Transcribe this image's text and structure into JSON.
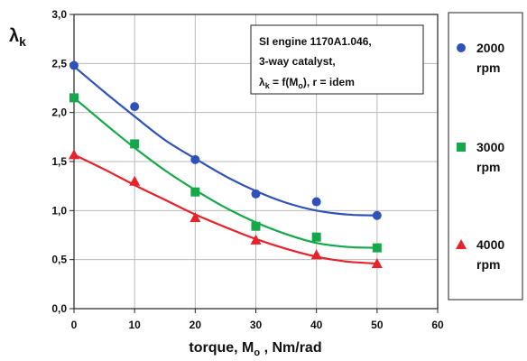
{
  "chart_data": {
    "type": "scatter",
    "ylabel_symbol": "λ",
    "ylabel_sub": "k",
    "xlabel_pre": "torque, M",
    "xlabel_sub": "o",
    "xlabel_post": " ,   Nm/rad",
    "xlim": [
      0,
      60
    ],
    "ylim": [
      0,
      3
    ],
    "xticks": [
      0,
      10,
      20,
      30,
      40,
      50,
      60
    ],
    "yticks": [
      "0,0",
      "0,5",
      "1,0",
      "1,5",
      "2,0",
      "2,5",
      "3,0"
    ],
    "grid": true,
    "annotation": {
      "line1": "SI engine 1170A1.046,",
      "line2": "3-way catalyst,",
      "line3_lambda": "λ",
      "line3_lambda_sub": "k",
      "line3_mid": " = f(M",
      "line3_m_sub": "o",
      "line3_end": "), r = idem"
    },
    "legend_position": "right",
    "series": [
      {
        "name_line1": "2000",
        "name_line2": "rpm",
        "marker": "circle",
        "color": "#2f52b8",
        "x": [
          0,
          10,
          20,
          30,
          40,
          50
        ],
        "y": [
          2.48,
          2.06,
          1.52,
          1.17,
          1.09,
          0.95
        ],
        "fit_x": [
          0,
          5,
          10,
          15,
          20,
          25,
          30,
          35,
          40,
          45,
          50
        ],
        "fit_y": [
          2.47,
          2.21,
          1.96,
          1.72,
          1.53,
          1.35,
          1.2,
          1.08,
          1.0,
          0.96,
          0.95
        ]
      },
      {
        "name_line1": "3000",
        "name_line2": "rpm",
        "marker": "square",
        "color": "#15a84a",
        "x": [
          0,
          10,
          20,
          30,
          40,
          50
        ],
        "y": [
          2.15,
          1.68,
          1.19,
          0.84,
          0.73,
          0.62
        ],
        "fit_x": [
          0,
          5,
          10,
          15,
          20,
          25,
          30,
          35,
          40,
          45,
          50
        ],
        "fit_y": [
          2.15,
          1.89,
          1.64,
          1.41,
          1.21,
          1.03,
          0.88,
          0.76,
          0.67,
          0.63,
          0.62
        ]
      },
      {
        "name_line1": "4000",
        "name_line2": "rpm",
        "marker": "triangle",
        "color": "#e8222a",
        "x": [
          0,
          10,
          20,
          30,
          40,
          50
        ],
        "y": [
          1.57,
          1.3,
          0.93,
          0.7,
          0.55,
          0.46
        ],
        "fit_x": [
          0,
          5,
          10,
          15,
          20,
          25,
          30,
          35,
          40,
          45,
          50
        ],
        "fit_y": [
          1.57,
          1.42,
          1.26,
          1.11,
          0.96,
          0.83,
          0.71,
          0.61,
          0.53,
          0.48,
          0.46
        ]
      }
    ]
  }
}
